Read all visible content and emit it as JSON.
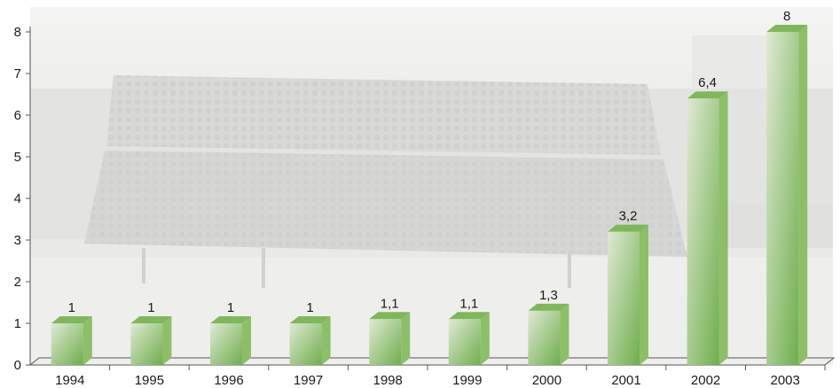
{
  "chart_data": {
    "type": "bar",
    "categories": [
      "1994",
      "1995",
      "1996",
      "1997",
      "1998",
      "1999",
      "2000",
      "2001",
      "2002",
      "2003"
    ],
    "values": [
      1,
      1,
      1,
      1,
      1.1,
      1.1,
      1.3,
      3.2,
      6.4,
      8
    ],
    "data_labels": [
      "1",
      "1",
      "1",
      "1",
      "1,1",
      "1,1",
      "1,3",
      "3,2",
      "6,4",
      "8"
    ],
    "y_ticks": [
      "0",
      "1",
      "2",
      "3",
      "4",
      "5",
      "6",
      "7",
      "8"
    ],
    "ylim": [
      0,
      8
    ],
    "grid": false,
    "style": "3d-bar",
    "background": "faded photo of solar collector panels",
    "colors": {
      "bar_light": "#dfe9d4",
      "bar_dark": "#6fae4c",
      "bar_side": "#8cbf68",
      "bar_top": "#7fb85a",
      "axis": "#555555"
    }
  }
}
